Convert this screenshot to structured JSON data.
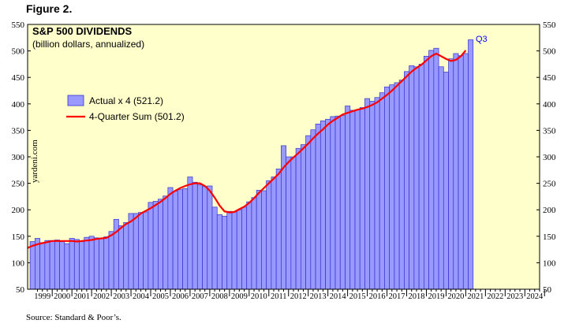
{
  "figure_label": "Figure 2.",
  "source": "Source: Standard & Poor’s.",
  "watermark": "yardeni.com",
  "colors": {
    "plot_bg": "#FFFFCC",
    "bar_fill": "#9999FF",
    "bar_stroke": "#3333CC",
    "line": "#FF0000",
    "annotation": "#0000FF"
  },
  "chart_data": {
    "type": "bar",
    "title": "S&P 500 DIVIDENDS",
    "subtitle": "(billion dollars, annualized)",
    "ylim": [
      50,
      550
    ],
    "yticks": [
      50,
      100,
      150,
      200,
      250,
      300,
      350,
      400,
      450,
      500,
      550
    ],
    "xlim": [
      1998.75,
      2024.75
    ],
    "year_labels": [
      "1999",
      "2000",
      "2001",
      "2002",
      "2003",
      "2004",
      "2005",
      "2006",
      "2007",
      "2008",
      "2009",
      "2010",
      "2011",
      "2012",
      "2013",
      "2014",
      "2015",
      "2016",
      "2017",
      "2018",
      "2019",
      "2020",
      "2021",
      "2022",
      "2023",
      "2024"
    ],
    "legend_position": "upper-left",
    "annotation": "Q3",
    "series": [
      {
        "name": "Actual x 4 (521.2)",
        "type": "bar",
        "start": 1999.0,
        "step": 0.25,
        "values": [
          140,
          146,
          138,
          142,
          142,
          143,
          140,
          136,
          146,
          144,
          140,
          148,
          150,
          147,
          146,
          149,
          159,
          182,
          170,
          176,
          193,
          193,
          195,
          196,
          214,
          216,
          220,
          226,
          242,
          235,
          238,
          240,
          262,
          252,
          247,
          244,
          245,
          205,
          191,
          188,
          197,
          196,
          200,
          205,
          215,
          223,
          237,
          236,
          255,
          262,
          277,
          321,
          300,
          300,
          316,
          323,
          340,
          351,
          362,
          368,
          371,
          376,
          377,
          378,
          396,
          388,
          389,
          393,
          410,
          405,
          412,
          421,
          432,
          436,
          440,
          445,
          461,
          472,
          470,
          475,
          490,
          501,
          505,
          470,
          460,
          485,
          495,
          491,
          495,
          521
        ]
      },
      {
        "name": "4-Quarter Sum (501.2)",
        "type": "line",
        "start": 1998.75,
        "step": 0.25,
        "values": [
          128,
          132,
          135,
          137,
          139,
          141,
          141,
          141,
          141,
          141,
          140,
          141,
          142,
          143,
          145,
          146,
          147,
          152,
          158,
          166,
          173,
          178,
          185,
          193,
          198,
          203,
          209,
          215,
          222,
          230,
          236,
          241,
          245,
          248,
          250,
          250,
          245,
          236,
          223,
          208,
          197,
          195,
          196,
          201,
          206,
          213,
          222,
          232,
          241,
          250,
          259,
          268,
          280,
          290,
          299,
          307,
          316,
          325,
          335,
          344,
          352,
          361,
          368,
          374,
          380,
          383,
          386,
          389,
          391,
          394,
          398,
          403,
          410,
          417,
          425,
          434,
          443,
          452,
          461,
          468,
          474,
          482,
          490,
          495,
          490,
          485,
          481,
          483,
          490,
          501
        ]
      }
    ]
  }
}
